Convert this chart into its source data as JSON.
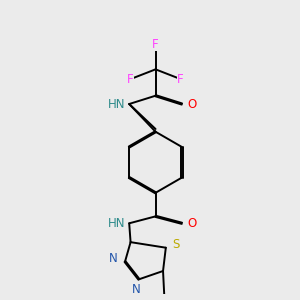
{
  "background_color": "#ebebeb",
  "atom_colors": {
    "F": "#ff44ff",
    "O": "#ff0000",
    "N": "#2255aa",
    "S": "#bbaa00",
    "H_label": "#2e8b8b",
    "C": "#000000"
  },
  "figsize": [
    3.0,
    3.0
  ],
  "dpi": 100
}
